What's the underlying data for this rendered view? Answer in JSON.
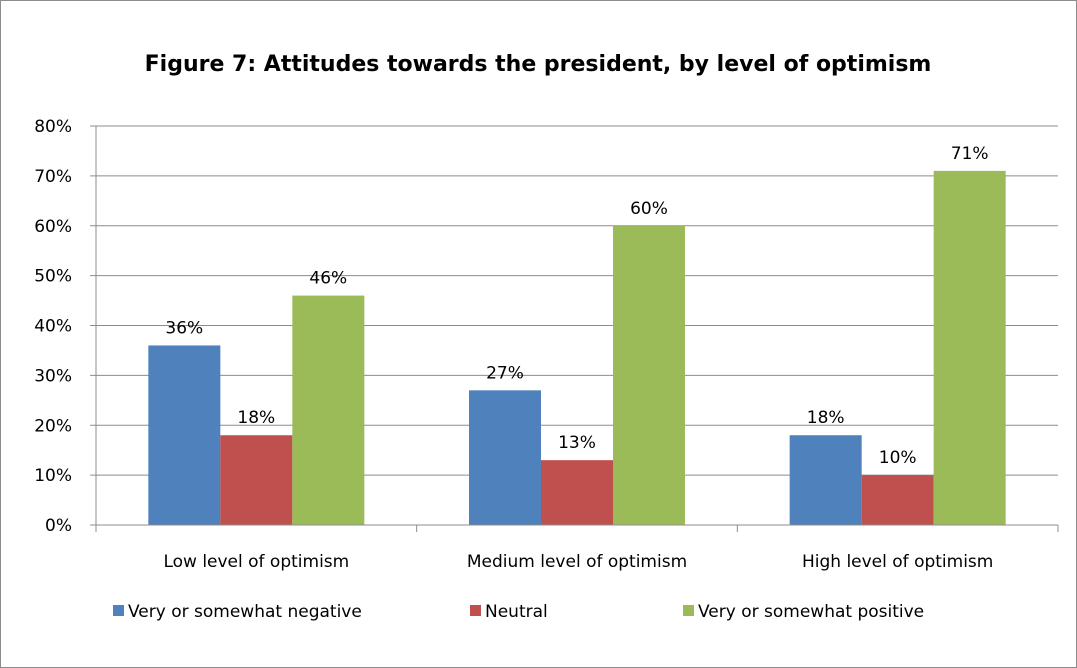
{
  "chart_data": {
    "type": "bar",
    "title": "Figure 7: Attitudes towards the president, by level of optimism",
    "categories": [
      "Low level of optimism",
      "Medium level of optimism",
      "High level of optimism"
    ],
    "series": [
      {
        "name": "Very or somewhat negative",
        "color": "#4f81bd",
        "values": [
          36,
          27,
          18
        ],
        "labels": [
          "36%",
          "27%",
          "18%"
        ]
      },
      {
        "name": "Neutral",
        "color": "#c0504d",
        "values": [
          18,
          13,
          10
        ],
        "labels": [
          "18%",
          "13%",
          "10%"
        ]
      },
      {
        "name": "Very or somewhat positive",
        "color": "#9bbb59",
        "values": [
          46,
          60,
          71
        ],
        "labels": [
          "46%",
          "60%",
          "71%"
        ]
      }
    ],
    "ylim": [
      0,
      80
    ],
    "yticks": [
      "0%",
      "10%",
      "20%",
      "30%",
      "40%",
      "50%",
      "60%",
      "70%",
      "80%"
    ],
    "grid": true,
    "legend": "bottom"
  }
}
